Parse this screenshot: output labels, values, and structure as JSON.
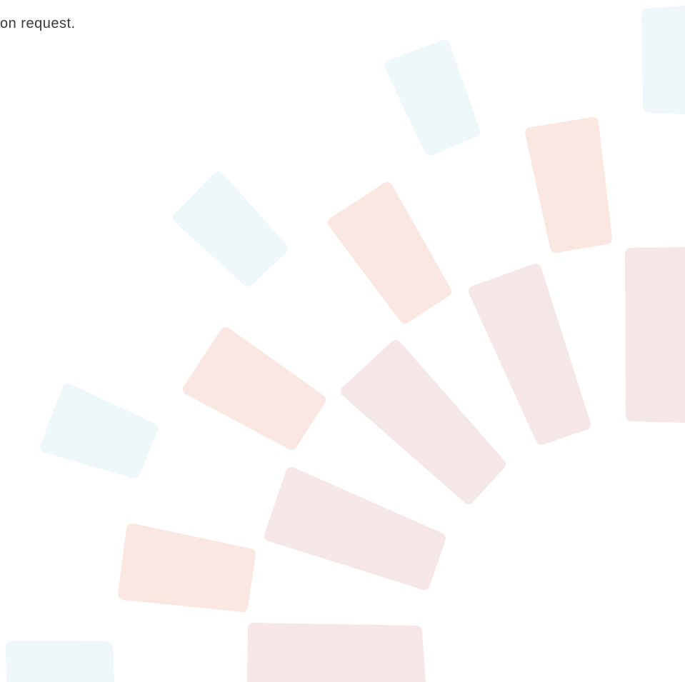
{
  "text": "on request."
}
